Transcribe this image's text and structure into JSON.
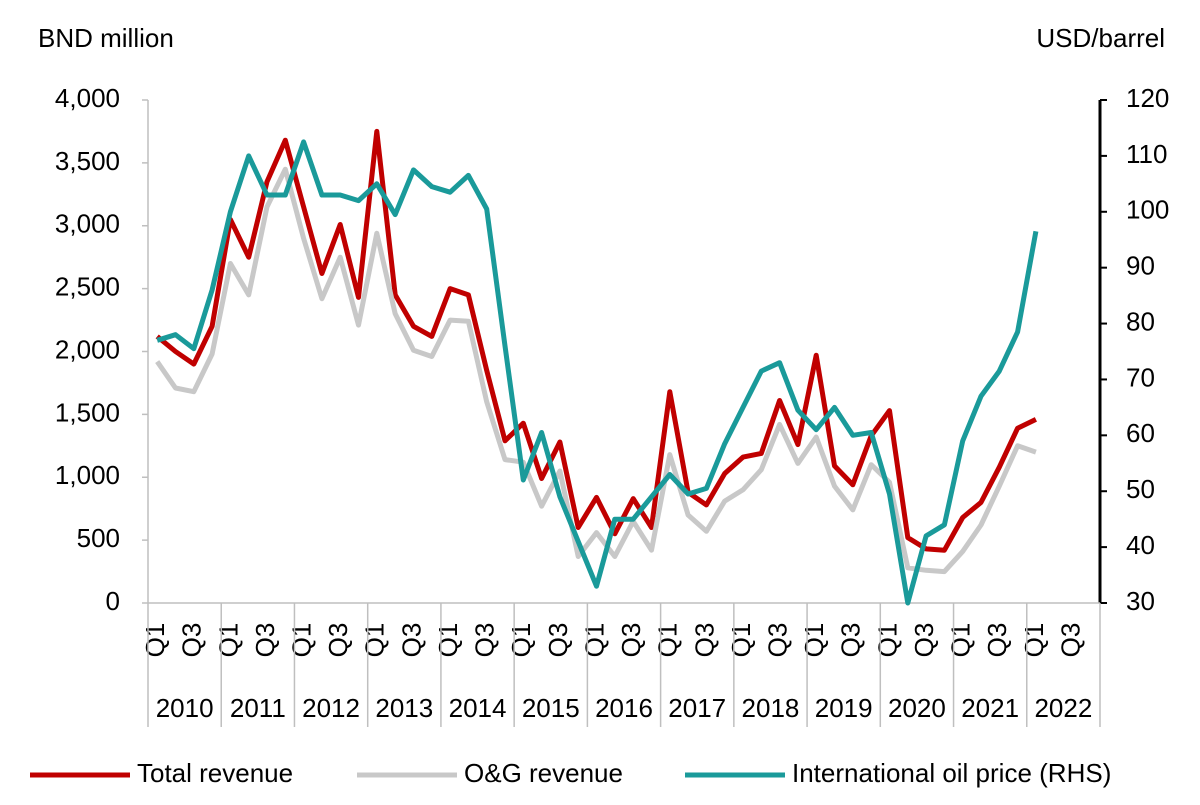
{
  "chart_data": {
    "type": "line",
    "y_label": "BND million",
    "y2_label": "USD/barrel",
    "categories": [
      "Q1",
      null,
      "Q3",
      null,
      "Q1",
      null,
      "Q3",
      null,
      "Q1",
      null,
      "Q3",
      null,
      "Q1",
      null,
      "Q3",
      null,
      "Q1",
      null,
      "Q3",
      null,
      "Q1",
      null,
      "Q3",
      null,
      "Q1",
      null,
      "Q3",
      null,
      "Q1",
      null,
      "Q3",
      null,
      "Q1",
      null,
      "Q3",
      null,
      "Q1",
      null,
      "Q3",
      null,
      "Q1",
      null,
      "Q3",
      null,
      "Q1",
      null,
      "Q3",
      null,
      "Q1",
      null,
      "Q3",
      null
    ],
    "category_groups": [
      "2010",
      "2011",
      "2012",
      "2013",
      "2014",
      "2015",
      "2016",
      "2017",
      "2018",
      "2019",
      "2020",
      "2021",
      "2022"
    ],
    "series": [
      {
        "name": "Total revenue",
        "color": "#c00000",
        "axis": "y",
        "values": [
          2120,
          2000,
          1900,
          2200,
          3050,
          2750,
          3350,
          3680,
          3150,
          2620,
          3010,
          2430,
          3750,
          2450,
          2200,
          2120,
          2500,
          2450,
          1850,
          1290,
          1430,
          990,
          1280,
          600,
          840,
          550,
          830,
          600,
          1680,
          880,
          780,
          1030,
          1160,
          1190,
          1610,
          1260,
          1970,
          1090,
          940,
          1330,
          1530,
          520,
          430,
          420,
          680,
          800,
          1080,
          1390,
          1460,
          null,
          null,
          null
        ]
      },
      {
        "name": "O&G revenue",
        "color": "#c8c8c8",
        "axis": "y",
        "values": [
          1920,
          1710,
          1680,
          1980,
          2700,
          2450,
          3150,
          3450,
          2900,
          2420,
          2750,
          2210,
          2940,
          2300,
          2010,
          1960,
          2250,
          2240,
          1600,
          1140,
          1120,
          770,
          1050,
          370,
          560,
          370,
          650,
          420,
          1180,
          700,
          570,
          810,
          900,
          1060,
          1420,
          1110,
          1320,
          930,
          740,
          1100,
          960,
          280,
          260,
          250,
          410,
          620,
          930,
          1250,
          1200,
          null,
          null,
          null
        ]
      },
      {
        "name": "International oil price (RHS)",
        "color": "#1a9a9a",
        "axis": "y2",
        "values": [
          77,
          78,
          75.5,
          86,
          100,
          110,
          103,
          103,
          112.5,
          103,
          103,
          102,
          105,
          99.5,
          107.5,
          104.5,
          103.5,
          106.5,
          100.5,
          76,
          52,
          60.5,
          49,
          41,
          33,
          45,
          45,
          49,
          53,
          49.5,
          50.5,
          58.5,
          65,
          71.5,
          73,
          64.5,
          61,
          65,
          60,
          60.5,
          49.5,
          30,
          42,
          44,
          59,
          67,
          71.5,
          78.5,
          96.5,
          null,
          null,
          null
        ]
      }
    ],
    "ylim": [
      0,
      4000
    ],
    "yticks": [
      0,
      500,
      {
        "value": 1000,
        "label": "1,000"
      },
      {
        "value": 1500,
        "label": "1,500"
      },
      {
        "value": 2000,
        "label": "2,000"
      },
      {
        "value": 2500,
        "label": "2,500"
      },
      {
        "value": 3000,
        "label": "3,000"
      },
      {
        "value": 3500,
        "label": "3,500"
      },
      {
        "value": 4000,
        "label": "4,000"
      }
    ],
    "y2lim": [
      30,
      120
    ],
    "y2ticks": [
      30,
      40,
      50,
      60,
      70,
      80,
      90,
      100,
      110,
      120
    ],
    "legend": "bottom"
  }
}
